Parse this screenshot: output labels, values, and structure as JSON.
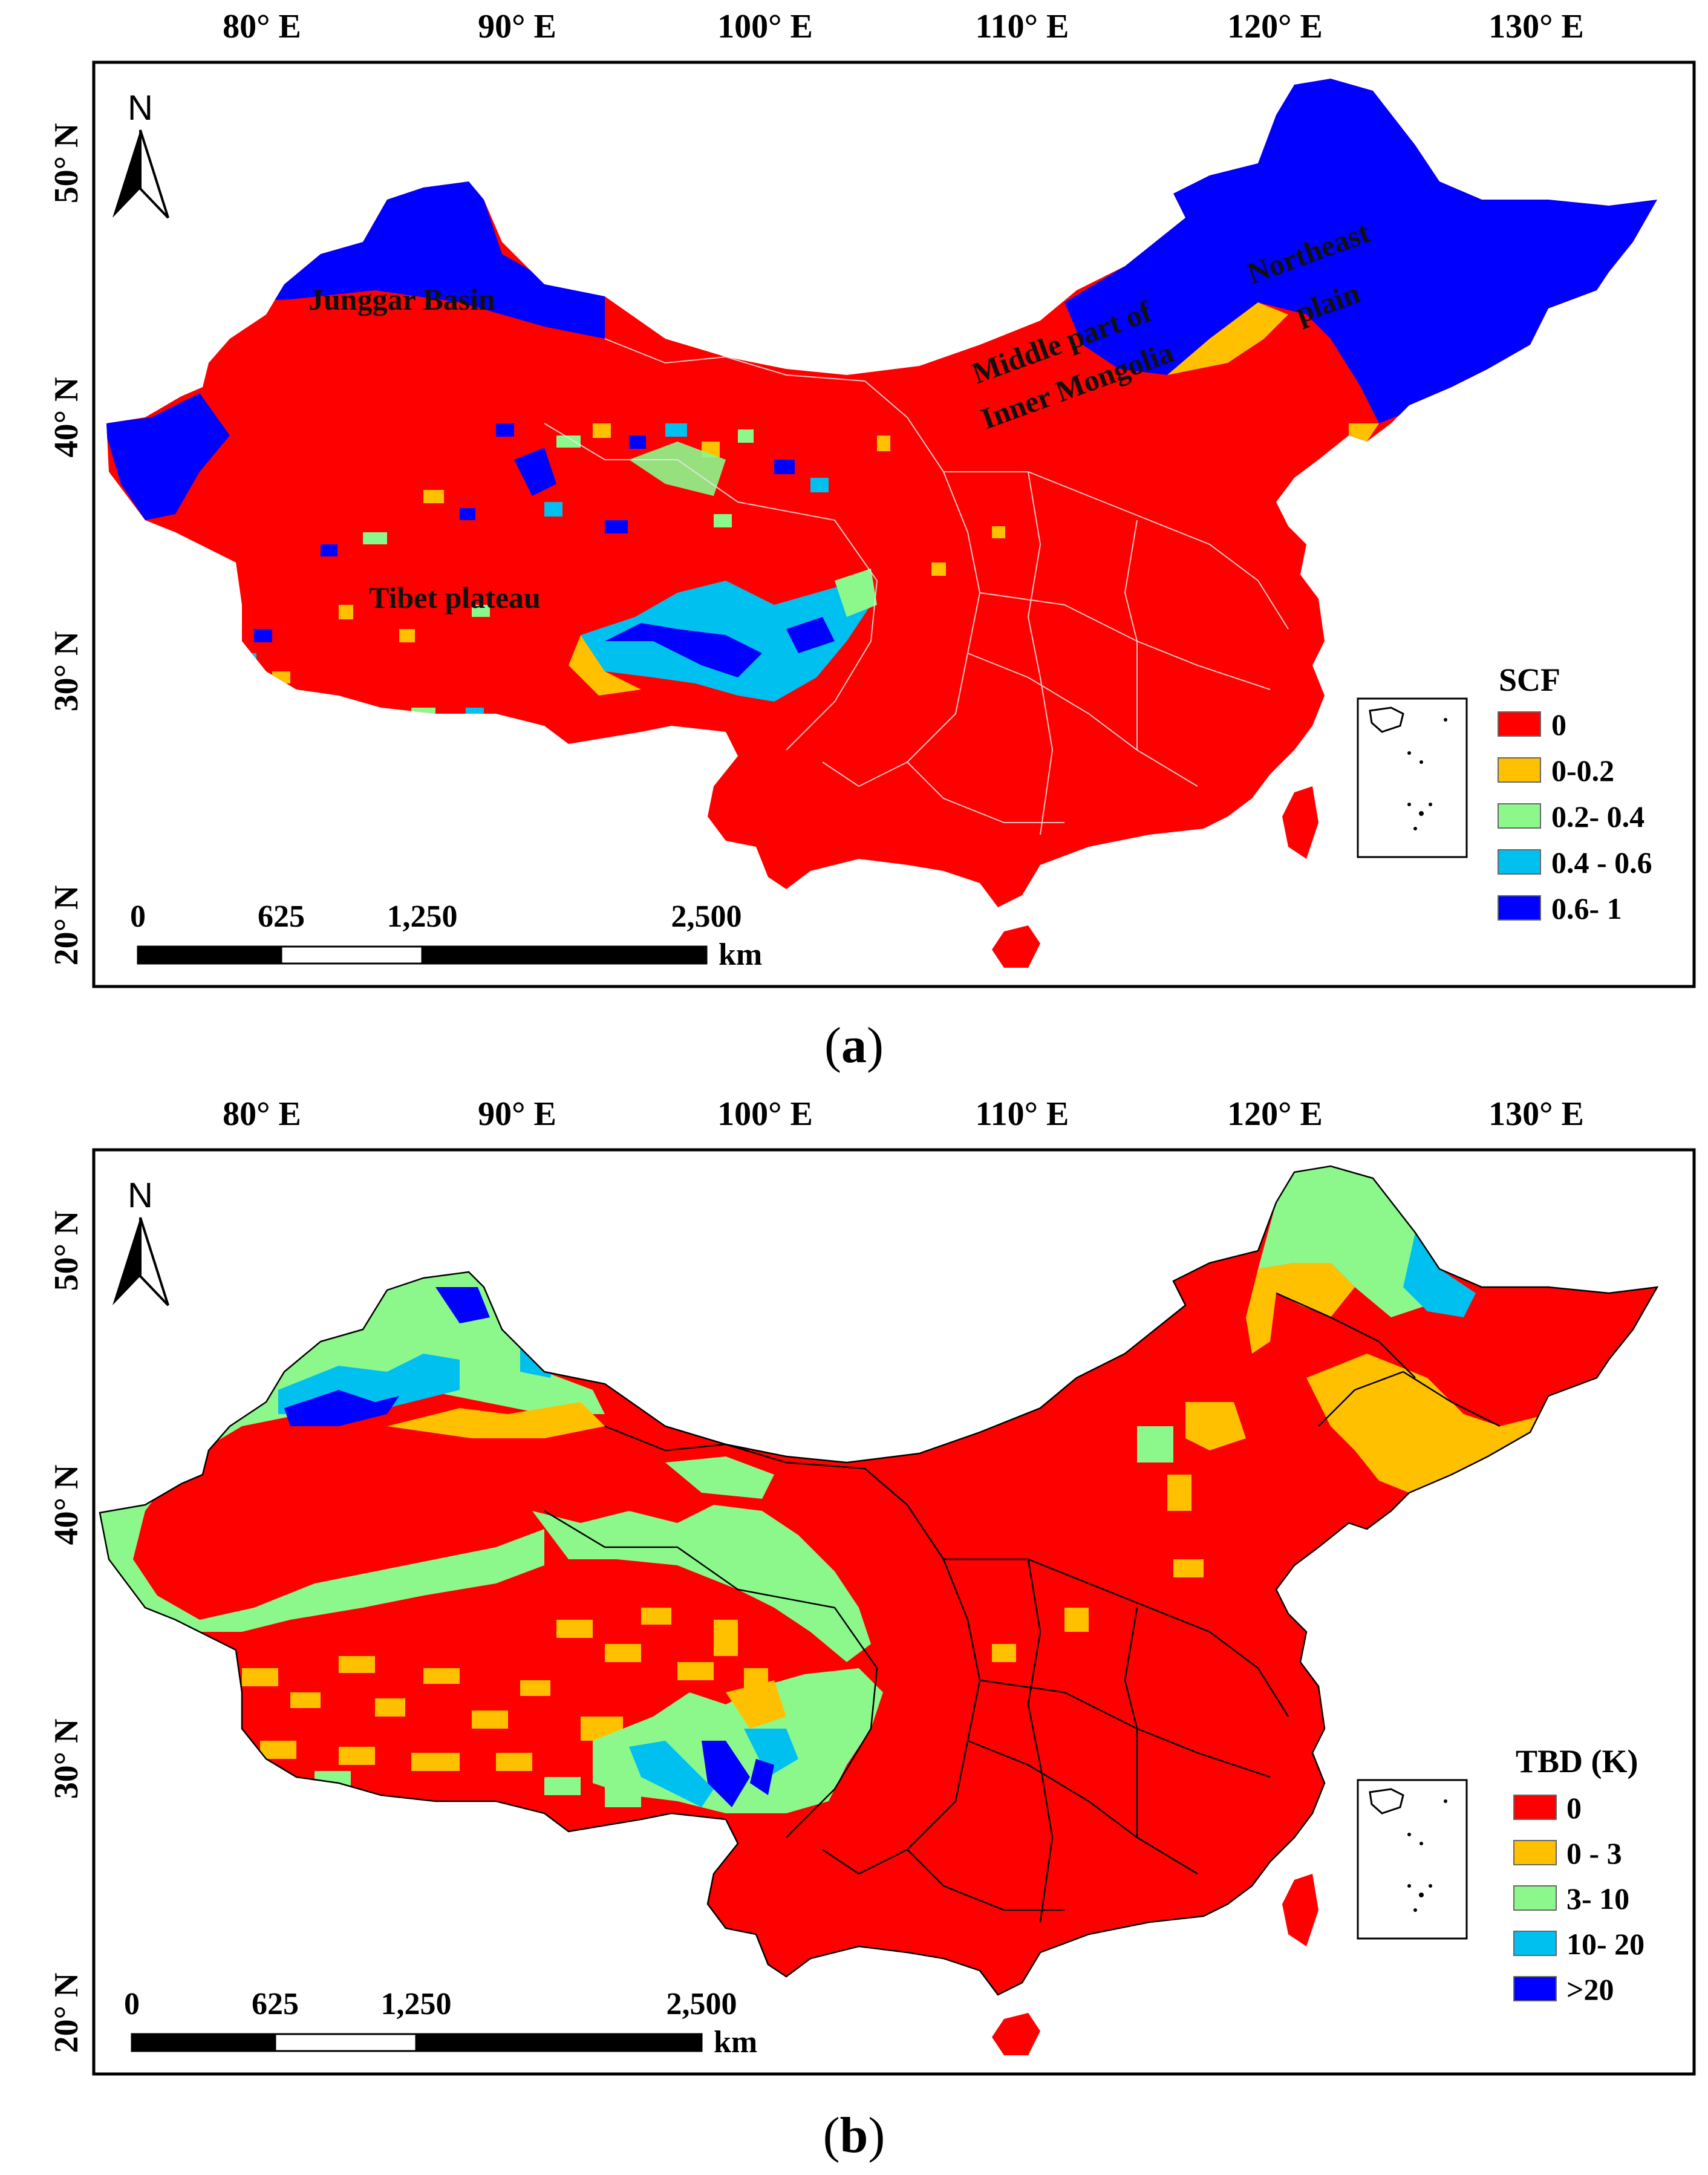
{
  "figure": {
    "panels": [
      {
        "id": "a",
        "caption_letter": "a",
        "lon_ticks": [
          "80° E",
          "90° E",
          "100° E",
          "110° E",
          "120° E",
          "130° E"
        ],
        "lat_ticks": [
          "50° N",
          "40° N",
          "30° N",
          "20° N"
        ],
        "north_label": "N",
        "scale_labels": [
          "0",
          "625",
          "1,250",
          "2,500"
        ],
        "scale_unit": "km",
        "legend_title": "SCF",
        "legend_items": [
          {
            "label": "0",
            "color": "#ff0000"
          },
          {
            "label": "0-0.2",
            "color": "#ffc000"
          },
          {
            "label": "0.2- 0.4",
            "color": "#8cf88c"
          },
          {
            "label": "0.4 - 0.6",
            "color": "#00c0f0"
          },
          {
            "label": "0.6- 1",
            "color": "#0000ff"
          }
        ],
        "region_labels": {
          "junggar": "Junggar Basin",
          "tibet": "Tibet plateau",
          "mongolia_line1": "Middle part of",
          "mongolia_line2": "Inner Mongolia",
          "northeast_line1": "Northeast",
          "northeast_line2": "plain"
        }
      },
      {
        "id": "b",
        "caption_letter": "b",
        "lon_ticks": [
          "80° E",
          "90° E",
          "100° E",
          "110° E",
          "120° E",
          "130° E"
        ],
        "lat_ticks": [
          "50° N",
          "40° N",
          "30° N",
          "20° N"
        ],
        "north_label": "N",
        "scale_labels": [
          "0",
          "625",
          "1,250",
          "2,500"
        ],
        "scale_unit": "km",
        "legend_title": "TBD (K)",
        "legend_items": [
          {
            "label": "0",
            "color": "#ff0000"
          },
          {
            "label": "0 - 3",
            "color": "#ffc000"
          },
          {
            "label": "3- 10",
            "color": "#8cf88c"
          },
          {
            "label": "10- 20",
            "color": "#00c0f0"
          },
          {
            "label": ">20",
            "color": "#0000ff"
          }
        ]
      }
    ]
  },
  "colors": {
    "red": "#ff0000",
    "orange": "#ffc000",
    "green": "#8cf88c",
    "cyan": "#00c0f0",
    "blue": "#0000ff"
  }
}
